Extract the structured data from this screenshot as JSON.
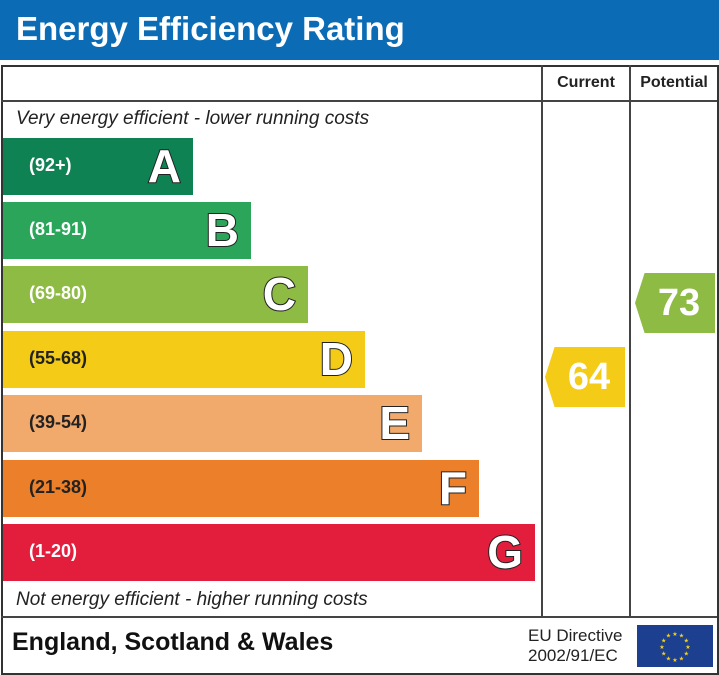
{
  "title": "Energy Efficiency Rating",
  "columns": {
    "current": "Current",
    "potential": "Potential"
  },
  "top_note": "Very energy efficient - lower running costs",
  "bottom_note": "Not energy efficient - higher running costs",
  "footer": {
    "region": "England, Scotland & Wales",
    "directive_line1": "EU Directive",
    "directive_line2": "2002/91/EC"
  },
  "chart_data": {
    "type": "bar",
    "categories": [
      "A",
      "B",
      "C",
      "D",
      "E",
      "F",
      "G"
    ],
    "ranges": [
      "(92+)",
      "(81-91)",
      "(69-80)",
      "(55-68)",
      "(39-54)",
      "(21-38)",
      "(1-20)"
    ],
    "colors": [
      "#0f8253",
      "#2aa55a",
      "#8dbb43",
      "#f4cb17",
      "#f1aa6c",
      "#ec7f2a",
      "#e21e3c"
    ],
    "current": {
      "value": 64,
      "band": "D",
      "color": "#f4cb17"
    },
    "potential": {
      "value": 73,
      "band": "C",
      "color": "#8dbb43"
    }
  }
}
